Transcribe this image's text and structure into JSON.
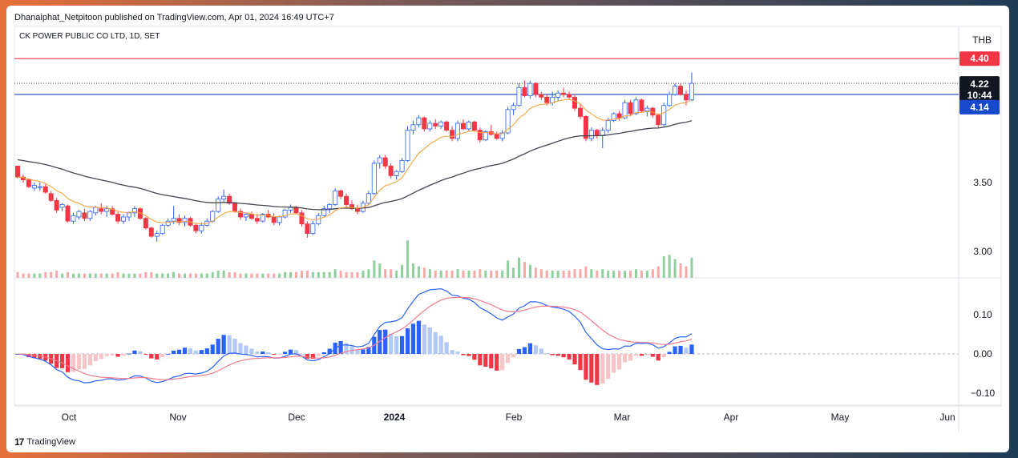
{
  "header": {
    "published": "Dhanaiphat_Netpitoon published on TradingView.com, Apr 01, 2024 16:49 UTC+7",
    "symbol": "CK POWER PUBLIC CO LTD, 1D, SET",
    "currency": "THB"
  },
  "footer": {
    "brand": "TradingView",
    "logo": "17"
  },
  "colors": {
    "up": "#2962ff",
    "down": "#f23645",
    "ema_fast": "#f5a542",
    "ema_slow": "#434651",
    "macd": "#2962ff",
    "signal": "#f57c8c",
    "resistance": "#f23645",
    "support": "#1848cc"
  },
  "price_tags": {
    "resistance": "4.40",
    "last": "4.22",
    "countdown": "10:44",
    "support": "4.14"
  },
  "chart_data": {
    "type": "candlestick",
    "price_axis_ticks": [
      "3.00",
      "3.50"
    ],
    "macd_axis_ticks": [
      "0.10",
      "0.00",
      "−0.10"
    ],
    "x_ticks": [
      "Oct",
      "Nov",
      "Dec",
      "2024",
      "Feb",
      "Mar",
      "Apr",
      "May",
      "Jun"
    ],
    "resistance_level": 4.4,
    "support_level": 4.14,
    "last_price": 4.22,
    "bars": [
      [
        3.62,
        3.6,
        3.53,
        3.54,
        0.4
      ],
      [
        3.54,
        3.56,
        3.5,
        3.52,
        0.3
      ],
      [
        3.52,
        3.53,
        3.46,
        3.47,
        0.3
      ],
      [
        3.46,
        3.5,
        3.44,
        3.48,
        0.3
      ],
      [
        3.47,
        3.5,
        3.44,
        3.47,
        0.3
      ],
      [
        3.47,
        3.49,
        3.42,
        3.43,
        0.4
      ],
      [
        3.42,
        3.44,
        3.36,
        3.37,
        0.4
      ],
      [
        3.37,
        3.39,
        3.28,
        3.3,
        0.5
      ],
      [
        3.32,
        3.35,
        3.29,
        3.34,
        0.3
      ],
      [
        3.33,
        3.34,
        3.21,
        3.22,
        0.4
      ],
      [
        3.22,
        3.28,
        3.2,
        3.26,
        0.3
      ],
      [
        3.25,
        3.3,
        3.23,
        3.29,
        0.3
      ],
      [
        3.28,
        3.31,
        3.22,
        3.24,
        0.3
      ],
      [
        3.24,
        3.3,
        3.22,
        3.29,
        0.3
      ],
      [
        3.28,
        3.33,
        3.26,
        3.32,
        0.3
      ],
      [
        3.31,
        3.35,
        3.27,
        3.29,
        0.3
      ],
      [
        3.29,
        3.33,
        3.25,
        3.31,
        0.3
      ],
      [
        3.31,
        3.33,
        3.26,
        3.27,
        0.3
      ],
      [
        3.27,
        3.29,
        3.2,
        3.22,
        0.4
      ],
      [
        3.22,
        3.27,
        3.2,
        3.25,
        0.3
      ],
      [
        3.25,
        3.29,
        3.22,
        3.28,
        0.3
      ],
      [
        3.28,
        3.33,
        3.25,
        3.31,
        0.3
      ],
      [
        3.31,
        3.32,
        3.23,
        3.24,
        0.3
      ],
      [
        3.24,
        3.25,
        3.16,
        3.17,
        0.4
      ],
      [
        3.17,
        3.18,
        3.1,
        3.11,
        0.4
      ],
      [
        3.11,
        3.15,
        3.07,
        3.13,
        0.3
      ],
      [
        3.13,
        3.2,
        3.12,
        3.19,
        0.3
      ],
      [
        3.19,
        3.24,
        3.18,
        3.22,
        0.3
      ],
      [
        3.22,
        3.33,
        3.2,
        3.24,
        0.4
      ],
      [
        3.24,
        3.27,
        3.19,
        3.21,
        0.3
      ],
      [
        3.21,
        3.26,
        3.18,
        3.24,
        0.3
      ],
      [
        3.24,
        3.25,
        3.18,
        3.19,
        0.3
      ],
      [
        3.19,
        3.2,
        3.13,
        3.15,
        0.3
      ],
      [
        3.15,
        3.21,
        3.13,
        3.19,
        0.3
      ],
      [
        3.19,
        3.24,
        3.18,
        3.22,
        0.3
      ],
      [
        3.22,
        3.3,
        3.21,
        3.29,
        0.4
      ],
      [
        3.29,
        3.4,
        3.28,
        3.38,
        0.5
      ],
      [
        3.38,
        3.45,
        3.36,
        3.4,
        0.5
      ],
      [
        3.4,
        3.42,
        3.34,
        3.35,
        0.4
      ],
      [
        3.35,
        3.36,
        3.28,
        3.29,
        0.4
      ],
      [
        3.29,
        3.31,
        3.23,
        3.25,
        0.3
      ],
      [
        3.25,
        3.28,
        3.22,
        3.27,
        0.3
      ],
      [
        3.27,
        3.29,
        3.23,
        3.24,
        0.3
      ],
      [
        3.24,
        3.27,
        3.2,
        3.22,
        0.3
      ],
      [
        3.22,
        3.28,
        3.21,
        3.27,
        0.3
      ],
      [
        3.27,
        3.3,
        3.24,
        3.25,
        0.3
      ],
      [
        3.25,
        3.28,
        3.19,
        3.21,
        0.3
      ],
      [
        3.21,
        3.26,
        3.19,
        3.25,
        0.3
      ],
      [
        3.25,
        3.31,
        3.24,
        3.3,
        0.4
      ],
      [
        3.3,
        3.34,
        3.28,
        3.32,
        0.4
      ],
      [
        3.32,
        3.33,
        3.27,
        3.28,
        0.4
      ],
      [
        3.28,
        3.3,
        3.18,
        3.2,
        0.5
      ],
      [
        3.2,
        3.22,
        3.1,
        3.13,
        0.5
      ],
      [
        3.13,
        3.22,
        3.12,
        3.2,
        0.4
      ],
      [
        3.2,
        3.28,
        3.19,
        3.26,
        0.4
      ],
      [
        3.26,
        3.33,
        3.25,
        3.31,
        0.4
      ],
      [
        3.31,
        3.35,
        3.28,
        3.34,
        0.4
      ],
      [
        3.34,
        3.46,
        3.33,
        3.44,
        0.6
      ],
      [
        3.44,
        3.45,
        3.38,
        3.4,
        0.5
      ],
      [
        3.4,
        3.42,
        3.32,
        3.34,
        0.4
      ],
      [
        3.34,
        3.37,
        3.3,
        3.31,
        0.4
      ],
      [
        3.31,
        3.34,
        3.27,
        3.29,
        0.4
      ],
      [
        3.29,
        3.37,
        3.28,
        3.35,
        0.5
      ],
      [
        3.35,
        3.44,
        3.34,
        3.42,
        0.6
      ],
      [
        3.42,
        3.66,
        3.41,
        3.64,
        1.2
      ],
      [
        3.64,
        3.7,
        3.6,
        3.68,
        1.0
      ],
      [
        3.68,
        3.7,
        3.6,
        3.62,
        0.6
      ],
      [
        3.62,
        3.64,
        3.53,
        3.55,
        0.6
      ],
      [
        3.55,
        3.59,
        3.52,
        3.58,
        0.5
      ],
      [
        3.58,
        3.68,
        3.57,
        3.66,
        0.9
      ],
      [
        3.66,
        3.91,
        3.65,
        3.88,
        2.6
      ],
      [
        3.88,
        3.95,
        3.85,
        3.92,
        1.0
      ],
      [
        3.92,
        3.99,
        3.9,
        3.97,
        0.8
      ],
      [
        3.97,
        3.98,
        3.87,
        3.89,
        0.7
      ],
      [
        3.89,
        3.95,
        3.87,
        3.93,
        0.6
      ],
      [
        3.93,
        3.96,
        3.89,
        3.91,
        0.5
      ],
      [
        3.91,
        3.95,
        3.89,
        3.94,
        0.5
      ],
      [
        3.94,
        3.95,
        3.87,
        3.88,
        0.5
      ],
      [
        3.88,
        3.91,
        3.8,
        3.82,
        0.5
      ],
      [
        3.82,
        3.95,
        3.8,
        3.93,
        0.6
      ],
      [
        3.93,
        3.96,
        3.88,
        3.89,
        0.5
      ],
      [
        3.89,
        3.95,
        3.87,
        3.94,
        0.5
      ],
      [
        3.94,
        3.95,
        3.87,
        3.88,
        0.5
      ],
      [
        3.88,
        3.9,
        3.79,
        3.81,
        0.6
      ],
      [
        3.81,
        3.88,
        3.8,
        3.87,
        0.5
      ],
      [
        3.87,
        3.92,
        3.84,
        3.85,
        0.5
      ],
      [
        3.85,
        3.87,
        3.81,
        3.82,
        0.5
      ],
      [
        3.82,
        3.88,
        3.8,
        3.86,
        0.5
      ],
      [
        3.86,
        4.05,
        3.85,
        4.03,
        1.2
      ],
      [
        4.03,
        4.08,
        3.99,
        4.06,
        0.7
      ],
      [
        4.06,
        4.22,
        4.05,
        4.19,
        1.4
      ],
      [
        4.19,
        4.24,
        4.12,
        4.13,
        1.1
      ],
      [
        4.13,
        4.24,
        4.11,
        4.22,
        0.9
      ],
      [
        4.22,
        4.23,
        4.12,
        4.14,
        0.7
      ],
      [
        4.14,
        4.16,
        4.1,
        4.12,
        0.6
      ],
      [
        4.12,
        4.14,
        4.06,
        4.08,
        0.5
      ],
      [
        4.08,
        4.16,
        4.06,
        4.12,
        0.5
      ],
      [
        4.12,
        4.17,
        4.09,
        4.15,
        0.5
      ],
      [
        4.15,
        4.19,
        4.12,
        4.14,
        0.5
      ],
      [
        4.14,
        4.16,
        4.1,
        4.12,
        0.5
      ],
      [
        4.12,
        4.14,
        4.02,
        4.04,
        0.6
      ],
      [
        4.04,
        4.07,
        3.96,
        3.98,
        0.6
      ],
      [
        3.98,
        3.99,
        3.8,
        3.82,
        0.8
      ],
      [
        3.82,
        3.9,
        3.8,
        3.88,
        0.6
      ],
      [
        3.88,
        3.89,
        3.82,
        3.84,
        0.5
      ],
      [
        3.84,
        3.9,
        3.75,
        3.88,
        0.6
      ],
      [
        3.88,
        3.97,
        3.86,
        3.95,
        0.5
      ],
      [
        3.95,
        4.01,
        3.94,
        4.0,
        0.5
      ],
      [
        4.0,
        4.02,
        3.95,
        3.97,
        0.5
      ],
      [
        3.97,
        4.1,
        3.96,
        4.08,
        0.5
      ],
      [
        4.08,
        4.1,
        3.98,
        4.0,
        0.5
      ],
      [
        4.0,
        4.12,
        3.99,
        4.1,
        0.6
      ],
      [
        4.1,
        4.11,
        4.01,
        4.02,
        0.5
      ],
      [
        4.02,
        4.06,
        3.98,
        4.04,
        0.5
      ],
      [
        4.04,
        4.05,
        3.97,
        3.99,
        0.6
      ],
      [
        3.99,
        4.0,
        3.9,
        3.92,
        0.8
      ],
      [
        3.92,
        4.08,
        3.91,
        4.06,
        1.5
      ],
      [
        4.06,
        4.16,
        4.05,
        4.14,
        1.6
      ],
      [
        4.14,
        4.22,
        4.13,
        4.2,
        1.3
      ],
      [
        4.2,
        4.22,
        4.13,
        4.14,
        1.0
      ],
      [
        4.14,
        4.17,
        4.06,
        4.1,
        0.8
      ],
      [
        4.1,
        4.3,
        4.09,
        4.22,
        1.4
      ]
    ]
  }
}
